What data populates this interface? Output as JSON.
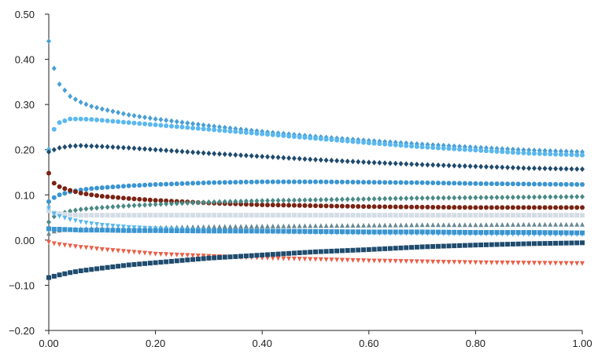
{
  "chart_data": {
    "type": "scatter",
    "title": "",
    "xlabel": "",
    "ylabel": "",
    "xlim": [
      0,
      1
    ],
    "ylim": [
      -0.2,
      0.5
    ],
    "grid": false,
    "legend": "none",
    "x_ticks": [
      "0.00",
      "0.20",
      "0.40",
      "0.60",
      "0.80",
      "1.00"
    ],
    "y_ticks": [
      "0.50",
      "0.40",
      "0.30",
      "0.20",
      "0.10",
      "0.00",
      "−0.10",
      "−0.20"
    ],
    "x_tick_values": [
      0,
      0.2,
      0.4,
      0.6,
      0.8,
      1.0
    ],
    "y_tick_values": [
      0.5,
      0.4,
      0.3,
      0.2,
      0.1,
      0.0,
      -0.1,
      -0.2
    ],
    "x": [
      0.0,
      0.01,
      0.02,
      0.04,
      0.06,
      0.08,
      0.1,
      0.15,
      0.2,
      0.3,
      0.4,
      0.5,
      0.6,
      0.7,
      0.8,
      0.9,
      1.0
    ],
    "series": [
      {
        "marker": "diamond",
        "color": "#4a9fd4",
        "y": [
          0.44,
          0.38,
          0.345,
          0.318,
          0.305,
          0.296,
          0.29,
          0.277,
          0.268,
          0.253,
          0.24,
          0.229,
          0.22,
          0.212,
          0.205,
          0.199,
          0.195
        ]
      },
      {
        "marker": "circle",
        "color": "#5bb8ee",
        "y": [
          0.2,
          0.245,
          0.26,
          0.268,
          0.268,
          0.267,
          0.265,
          0.26,
          0.255,
          0.245,
          0.235,
          0.225,
          0.215,
          0.206,
          0.199,
          0.192,
          0.188
        ]
      },
      {
        "marker": "diamond",
        "color": "#1f4b6e",
        "y": [
          0.195,
          0.2,
          0.204,
          0.208,
          0.209,
          0.208,
          0.207,
          0.204,
          0.2,
          0.192,
          0.185,
          0.178,
          0.172,
          0.167,
          0.163,
          0.159,
          0.157
        ]
      },
      {
        "marker": "circle",
        "color": "#3a95d0",
        "y": [
          0.085,
          0.094,
          0.1,
          0.107,
          0.111,
          0.114,
          0.116,
          0.12,
          0.123,
          0.127,
          0.129,
          0.129,
          0.128,
          0.127,
          0.125,
          0.124,
          0.123
        ]
      },
      {
        "marker": "circle",
        "color": "#7a2313",
        "y": [
          0.148,
          0.126,
          0.118,
          0.11,
          0.104,
          0.1,
          0.097,
          0.092,
          0.088,
          0.082,
          0.078,
          0.076,
          0.074,
          0.073,
          0.072,
          0.072,
          0.072
        ]
      },
      {
        "marker": "diamond",
        "color": "#4a8a86",
        "y": [
          0.04,
          0.052,
          0.058,
          0.064,
          0.068,
          0.07,
          0.072,
          0.076,
          0.079,
          0.084,
          0.087,
          0.089,
          0.091,
          0.093,
          0.094,
          0.095,
          0.096
        ]
      },
      {
        "marker": "square",
        "color": "#d4dde6",
        "y": [
          0.065,
          0.06,
          0.058,
          0.056,
          0.055,
          0.055,
          0.055,
          0.055,
          0.055,
          0.055,
          0.055,
          0.055,
          0.055,
          0.055,
          0.055,
          0.055,
          0.055
        ]
      },
      {
        "marker": "triangle-up",
        "color": "#6a8a94",
        "y": [
          0.015,
          0.02,
          0.022,
          0.024,
          0.025,
          0.026,
          0.026,
          0.027,
          0.028,
          0.03,
          0.031,
          0.032,
          0.033,
          0.034,
          0.034,
          0.035,
          0.035
        ]
      },
      {
        "marker": "triangle-down",
        "color": "#5bb8ee",
        "y": [
          0.07,
          0.058,
          0.052,
          0.045,
          0.04,
          0.036,
          0.033,
          0.028,
          0.025,
          0.021,
          0.018,
          0.016,
          0.015,
          0.014,
          0.013,
          0.012,
          0.012
        ]
      },
      {
        "marker": "square",
        "color": "#3a95d0",
        "y": [
          0.025,
          0.024,
          0.024,
          0.023,
          0.022,
          0.022,
          0.022,
          0.021,
          0.021,
          0.02,
          0.02,
          0.019,
          0.018,
          0.018,
          0.017,
          0.017,
          0.016
        ]
      },
      {
        "marker": "triangle-down",
        "color": "#e8604a",
        "y": [
          -0.005,
          -0.008,
          -0.01,
          -0.013,
          -0.016,
          -0.018,
          -0.021,
          -0.026,
          -0.031,
          -0.036,
          -0.04,
          -0.043,
          -0.046,
          -0.048,
          -0.05,
          -0.051,
          -0.052
        ]
      },
      {
        "marker": "square",
        "color": "#1f4b6e",
        "y": [
          -0.083,
          -0.08,
          -0.077,
          -0.072,
          -0.068,
          -0.065,
          -0.062,
          -0.055,
          -0.05,
          -0.04,
          -0.033,
          -0.026,
          -0.021,
          -0.015,
          -0.011,
          -0.008,
          -0.006
        ]
      }
    ]
  }
}
